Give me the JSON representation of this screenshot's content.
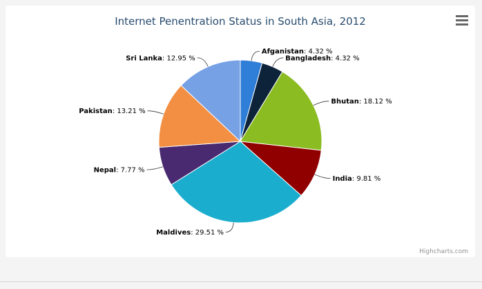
{
  "menu_icon": "hamburger-menu-icon",
  "credits": "Highcharts.com",
  "chart_data": {
    "type": "pie",
    "title": "Internet Penentration Status in South Asia, 2012",
    "unit": "%",
    "slices": [
      {
        "name": "Afganistan",
        "value": 4.32,
        "label": "4.32 %",
        "color": "#2f7ed8"
      },
      {
        "name": "Bangladesh",
        "value": 4.32,
        "label": "4.32 %",
        "color": "#0d233a"
      },
      {
        "name": "Bhutan",
        "value": 18.12,
        "label": "18.12 %",
        "color": "#8bbc21"
      },
      {
        "name": "India",
        "value": 9.81,
        "label": "9.81 %",
        "color": "#910000"
      },
      {
        "name": "Maldives",
        "value": 29.51,
        "label": "29.51 %",
        "color": "#1aadce"
      },
      {
        "name": "Nepal",
        "value": 7.77,
        "label": "7.77 %",
        "color": "#492970"
      },
      {
        "name": "Pakistan",
        "value": 13.21,
        "label": "13.21 %",
        "color": "#f28f43"
      },
      {
        "name": "Sri Lanka",
        "value": 12.95,
        "label": "12.95 %",
        "color": "#77a1e5"
      }
    ]
  }
}
